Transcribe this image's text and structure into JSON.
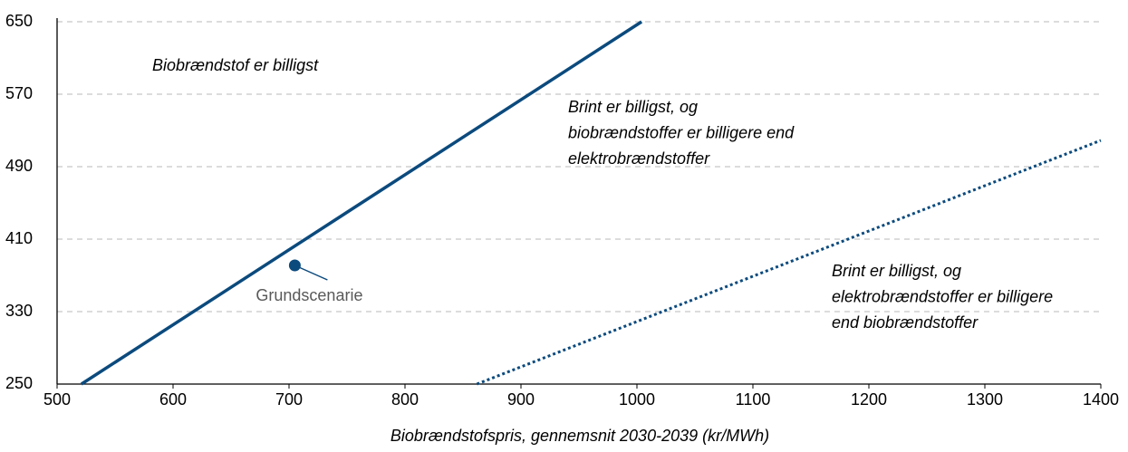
{
  "chart_data": {
    "type": "line",
    "x_label": "Biobrændstofspris, gennemsnit 2030-2039 (kr/MWh)",
    "xlim": [
      500,
      1400
    ],
    "xticks": [
      500,
      600,
      700,
      800,
      900,
      1000,
      1100,
      1200,
      1300,
      1400
    ],
    "ylim": [
      250,
      650
    ],
    "yticks": [
      250,
      330,
      410,
      490,
      570,
      650
    ],
    "grid": true,
    "series": [
      {
        "color": "#0b4a7d",
        "style": "solid",
        "x": [
          521,
          1004
        ],
        "values": [
          250,
          650
        ]
      },
      {
        "color": "#0b4a7d",
        "style": "dotted",
        "x": [
          862,
          1400
        ],
        "values": [
          250,
          519
        ]
      },
      {
        "name": "Grundscenarie",
        "color": "#0b4a7d",
        "style": "marker",
        "x": [
          705
        ],
        "values": [
          381
        ]
      }
    ],
    "annotations": [
      [
        "Biobrændstof er billigst"
      ],
      [
        "Brint er billigst, og",
        "biobrændstoffer er billigere end",
        "elektrobrændstoffer"
      ],
      [
        "Brint er billigst, og",
        "elektrobrændstoffer er billigere",
        "end biobrændstoffer"
      ]
    ]
  }
}
